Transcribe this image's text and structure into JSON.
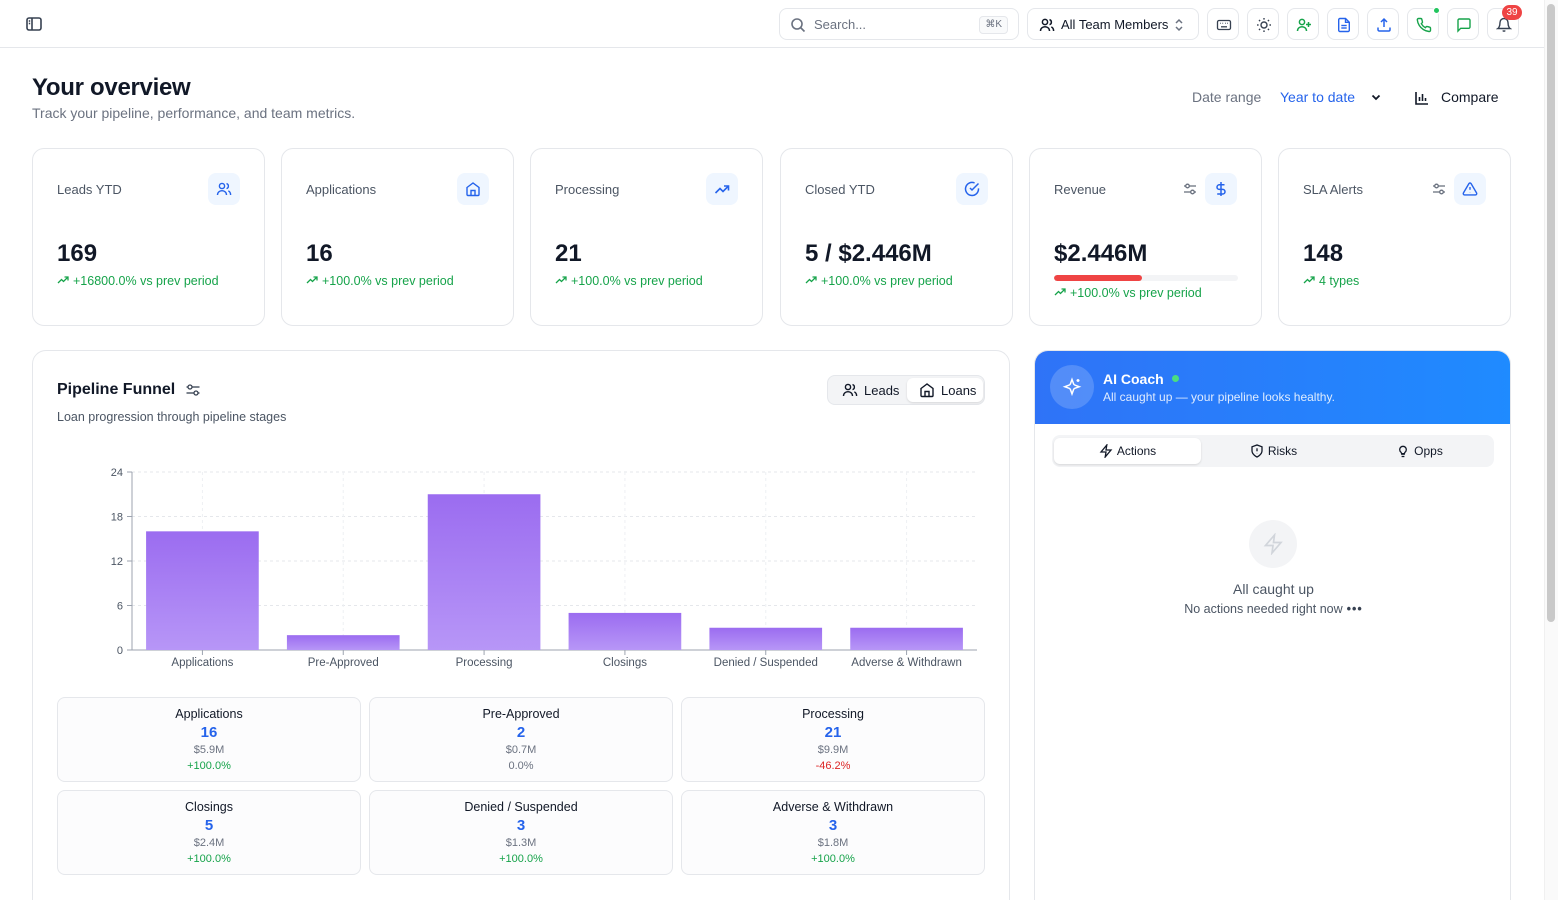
{
  "topbar": {
    "search_placeholder": "Search...",
    "search_shortcut": "⌘K",
    "team_selector": "All Team Members",
    "notifications_count": "39"
  },
  "header": {
    "title": "Your overview",
    "subtitle": "Track your pipeline, performance, and team metrics.",
    "date_range_label": "Date range",
    "date_range_value": "Year to date",
    "compare_label": "Compare"
  },
  "metrics": [
    {
      "label": "Leads YTD",
      "value": "169",
      "change": "+16800.0% vs prev period",
      "icon": "users-icon"
    },
    {
      "label": "Applications",
      "value": "16",
      "change": "+100.0% vs prev period",
      "icon": "home-icon"
    },
    {
      "label": "Processing",
      "value": "21",
      "change": "+100.0% vs prev period",
      "icon": "trending-up-icon"
    },
    {
      "label": "Closed YTD",
      "value": "5 / $2.446M",
      "change": "+100.0% vs prev period",
      "icon": "check-circle-icon"
    },
    {
      "label": "Revenue",
      "value": "$2.446M",
      "change": "+100.0% vs prev period",
      "icon": "dollar-icon",
      "progress": 0.48,
      "progress_color": "#ef4444"
    },
    {
      "label": "SLA Alerts",
      "value": "148",
      "change": "4 types",
      "icon": "alert-triangle-icon"
    }
  ],
  "funnel": {
    "title": "Pipeline Funnel",
    "subtitle": "Loan progression through pipeline stages",
    "toggle": {
      "leads": "Leads",
      "loans": "Loans",
      "active": "loans"
    },
    "stats": [
      {
        "label": "Applications",
        "count": "16",
        "amount": "$5.9M",
        "change": "+100.0%",
        "change_color": "#16a34a"
      },
      {
        "label": "Pre-Approved",
        "count": "2",
        "amount": "$0.7M",
        "change": "0.0%",
        "change_color": "#6b7280"
      },
      {
        "label": "Processing",
        "count": "21",
        "amount": "$9.9M",
        "change": "-46.2%",
        "change_color": "#dc2626"
      },
      {
        "label": "Closings",
        "count": "5",
        "amount": "$2.4M",
        "change": "+100.0%",
        "change_color": "#16a34a"
      },
      {
        "label": "Denied / Suspended",
        "count": "3",
        "amount": "$1.3M",
        "change": "+100.0%",
        "change_color": "#16a34a"
      },
      {
        "label": "Adverse & Withdrawn",
        "count": "3",
        "amount": "$1.8M",
        "change": "+100.0%",
        "change_color": "#16a34a"
      }
    ]
  },
  "chart_data": {
    "type": "bar",
    "categories": [
      "Applications",
      "Pre-Approved",
      "Processing",
      "Closings",
      "Denied / Suspended",
      "Adverse & Withdrawn"
    ],
    "values": [
      16,
      2,
      21,
      5,
      3,
      3
    ],
    "ylim": [
      0,
      24
    ],
    "yticks": [
      0,
      6,
      12,
      18,
      24
    ],
    "grid": true,
    "bar_color_top": "#9b6cf0",
    "bar_color_bottom": "#b796f7"
  },
  "coach": {
    "title": "AI Coach",
    "subtitle": "All caught up — your pipeline looks healthy.",
    "tabs": [
      {
        "label": "Actions",
        "icon": "zap-icon"
      },
      {
        "label": "Risks",
        "icon": "shield-icon"
      },
      {
        "label": "Opps",
        "icon": "lightbulb-icon"
      }
    ],
    "empty_title": "All caught up",
    "empty_subtitle": "No actions needed right now"
  },
  "colors": {
    "accent": "#2563eb",
    "positive": "#16a34a",
    "negative": "#dc2626",
    "coach_gradient_start": "#2f73f7",
    "coach_gradient_end": "#1f8bff"
  }
}
